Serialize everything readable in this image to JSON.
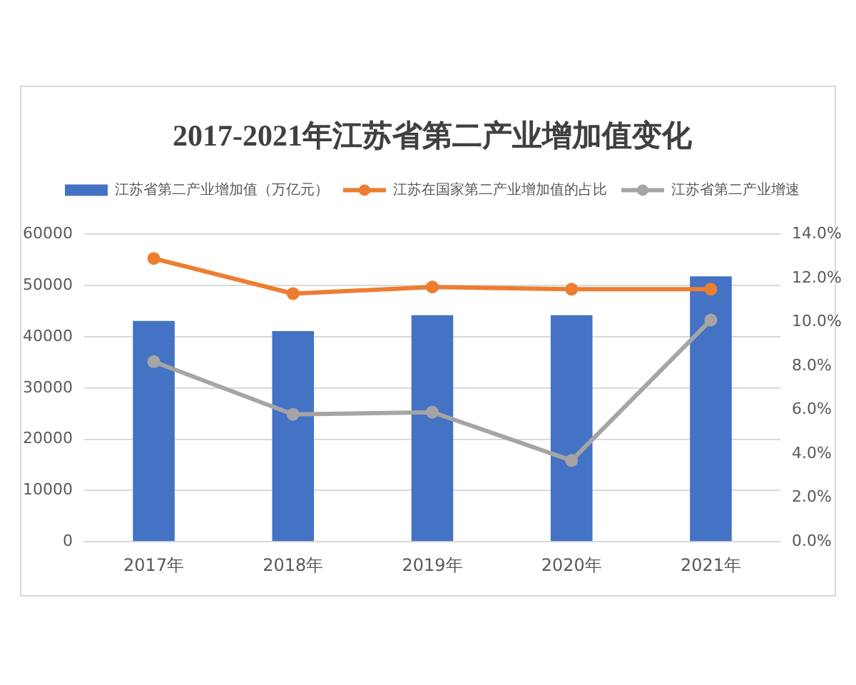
{
  "chart_data": {
    "type": "bar",
    "title": "2017-2021年江苏省第二产业增加值变化",
    "categories": [
      "2017年",
      "2018年",
      "2019年",
      "2020年",
      "2021年"
    ],
    "series": [
      {
        "name": "江苏省第二产业增加值（万亿元）",
        "color": "#4472c4",
        "values": [
          43100,
          41100,
          44200,
          44200,
          51800
        ]
      },
      {
        "name": "江苏在国家第二产业增加值的占比",
        "type": "line",
        "axis": "y2",
        "color": "#ed7d31",
        "values": [
          12.9,
          11.3,
          11.6,
          11.5,
          11.5
        ]
      },
      {
        "name": "江苏省第二产业增速",
        "type": "line",
        "axis": "y2",
        "color": "#a5a5a5",
        "values": [
          8.2,
          5.8,
          5.9,
          3.7,
          10.1
        ]
      }
    ],
    "ylim": [
      0,
      60000
    ],
    "yticks": [
      0,
      10000,
      20000,
      30000,
      40000,
      50000,
      60000
    ],
    "y2lim": [
      0,
      14
    ],
    "y2ticks": [
      {
        "value": 0,
        "label": "0.0%"
      },
      {
        "value": 2,
        "label": "2.0%"
      },
      {
        "value": 4,
        "label": "4.0%"
      },
      {
        "value": 6,
        "label": "6.0%"
      },
      {
        "value": 8,
        "label": "8.0%"
      },
      {
        "value": 10,
        "label": "10.0%"
      },
      {
        "value": 12,
        "label": "12.0%"
      },
      {
        "value": 14,
        "label": "14.0%"
      }
    ],
    "grid": "y",
    "legend": "top",
    "marker": "circle",
    "line_style": "solid"
  }
}
